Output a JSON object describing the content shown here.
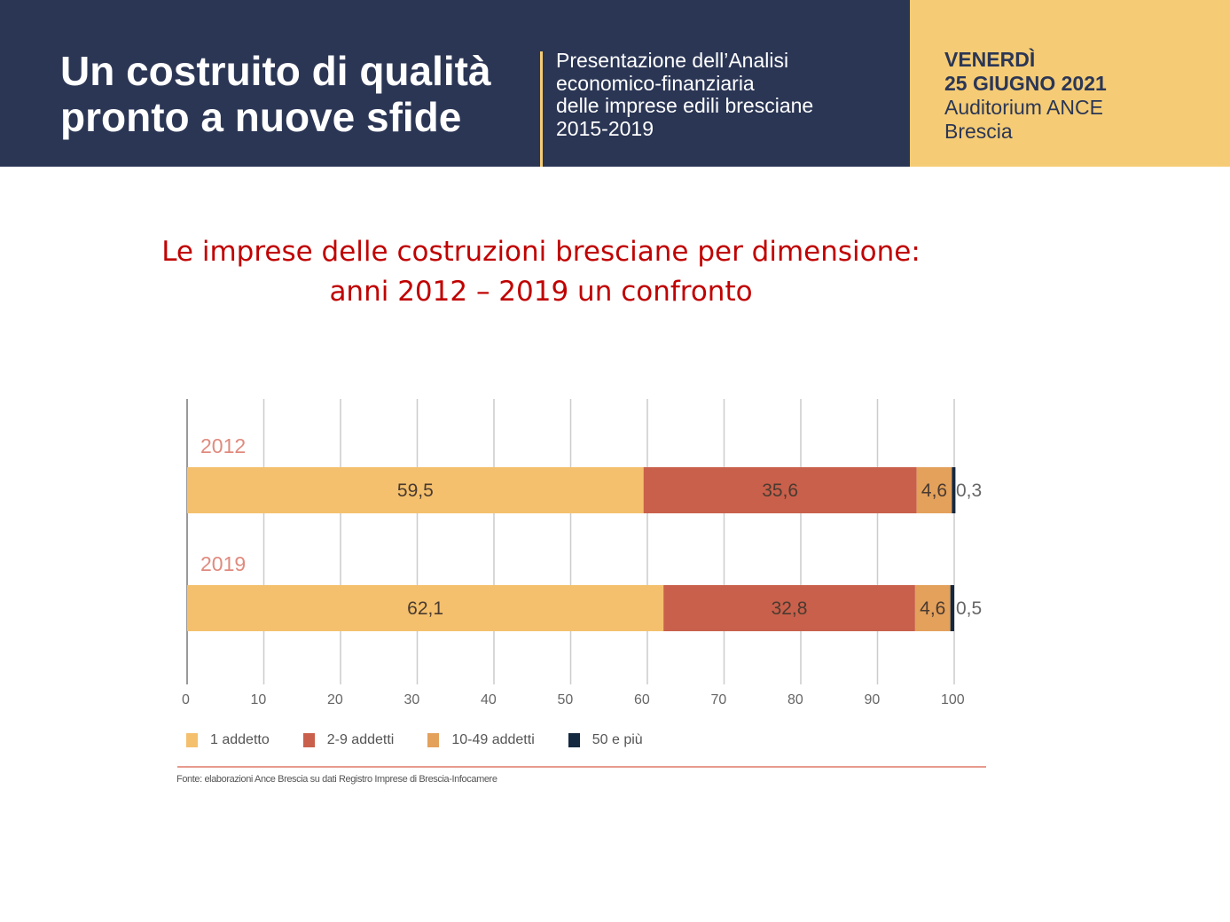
{
  "header": {
    "title_line1": "Un costruito di qualità",
    "title_line2": "pronto a nuove sfide",
    "subtitle": [
      "Presentazione dell’Analisi",
      "economico-finanziaria",
      "delle imprese edili bresciane",
      "2015-2019"
    ],
    "day": "VENERDÌ",
    "date": "25 GIUGNO 2021",
    "venue": "Auditorium ANCE",
    "city": "Brescia"
  },
  "slide_title": [
    "Le imprese delle costruzioni bresciane per dimensione:",
    "anni 2012 – 2019 un confronto"
  ],
  "chart_data": {
    "type": "bar",
    "orientation": "horizontal",
    "stacked": true,
    "categories": [
      "2012",
      "2019"
    ],
    "series": [
      {
        "name": "1 addetto",
        "values": [
          59.5,
          62.1
        ],
        "labels": [
          "59,5",
          "62,1"
        ],
        "color": "#f4c06d"
      },
      {
        "name": "2-9 addetti",
        "values": [
          35.6,
          32.8
        ],
        "labels": [
          "35,6",
          "32,8"
        ],
        "color": "#c9604b"
      },
      {
        "name": "10-49 addetti",
        "values": [
          4.6,
          4.6
        ],
        "labels": [
          "4,6",
          "4,6"
        ],
        "color": "#e3a15c"
      },
      {
        "name": "50 e più",
        "values": [
          0.3,
          0.5
        ],
        "labels": [
          "0,3",
          "0,5"
        ],
        "color": "#142840"
      }
    ],
    "xlim": [
      0,
      100
    ],
    "xticks": [
      "0",
      "10",
      "20",
      "30",
      "40",
      "50",
      "60",
      "70",
      "80",
      "90",
      "100"
    ],
    "grid": true,
    "legend": "bottom",
    "source": "Fonte: elaborazioni Ance Brescia su dati Registro Imprese di Brescia-Infocamere"
  }
}
